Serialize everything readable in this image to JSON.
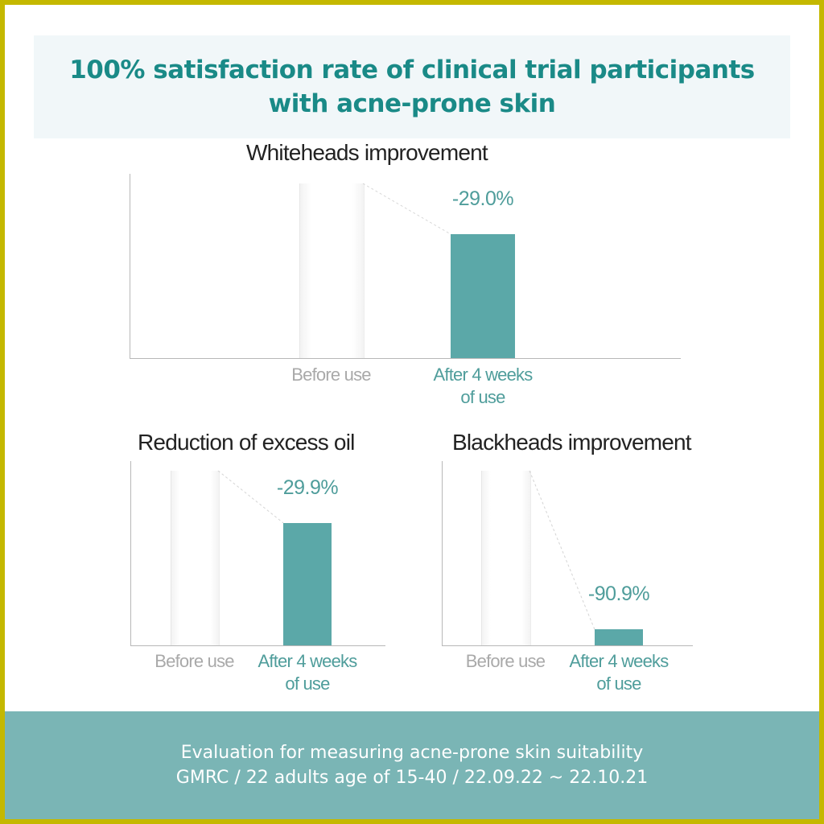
{
  "header": {
    "line1": "100% satisfaction rate of clinical trial participants",
    "line2": "with acne-prone skin"
  },
  "colors": {
    "accent": "#5ba8a8",
    "heading": "#1a8a87",
    "footer_bg": "#7ab5b5",
    "border": "#c4b800"
  },
  "chart_data": [
    {
      "type": "bar",
      "title": "Whiteheads improvement",
      "categories": [
        "Before use",
        "After 4 weeks of use"
      ],
      "category_lines": [
        [
          "Before use"
        ],
        [
          "After 4 weeks",
          "of use"
        ]
      ],
      "values": [
        100,
        71.0
      ],
      "change_label": "-29.0%",
      "ylim": [
        0,
        100
      ]
    },
    {
      "type": "bar",
      "title": "Reduction of excess oil",
      "categories": [
        "Before use",
        "After 4 weeks of use"
      ],
      "category_lines": [
        [
          "Before use"
        ],
        [
          "After 4 weeks",
          "of use"
        ]
      ],
      "values": [
        100,
        70.1
      ],
      "change_label": "-29.9%",
      "ylim": [
        0,
        100
      ]
    },
    {
      "type": "bar",
      "title": "Blackheads improvement",
      "categories": [
        "Before use",
        "After 4 weeks of use"
      ],
      "category_lines": [
        [
          "Before use"
        ],
        [
          "After 4 weeks",
          "of use"
        ]
      ],
      "values": [
        100,
        9.1
      ],
      "change_label": "-90.9%",
      "ylim": [
        0,
        100
      ]
    }
  ],
  "footer": {
    "line1": "Evaluation for measuring acne-prone skin suitability",
    "line2": "GMRC / 22 adults age of 15-40 / 22.09.22 ~ 22.10.21"
  }
}
